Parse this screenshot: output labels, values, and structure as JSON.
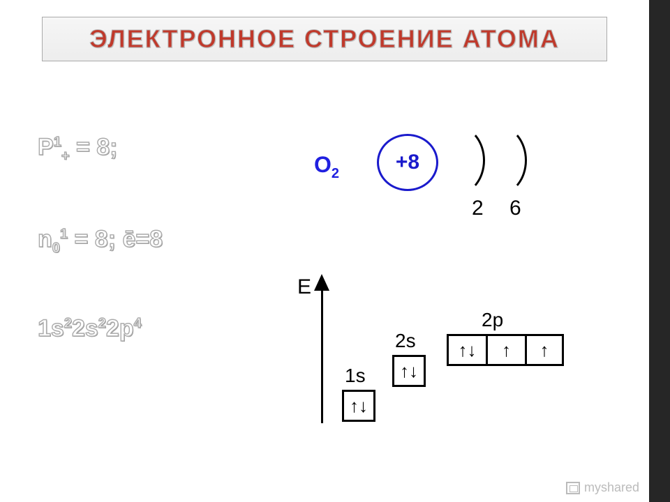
{
  "title": "ЭЛЕКТРОННОЕ СТРОЕНИЕ АТОМА",
  "colors": {
    "title_color": "#c0392b",
    "element_blue": "#2020e0",
    "circle_blue": "#1a1acc",
    "black": "#000000",
    "background": "#ffffff",
    "right_bar": "#262626",
    "outline_gray": "#aaaaaa"
  },
  "formulas": {
    "protons": {
      "base": "P",
      "sup": "1",
      "sub": "+",
      "eq": " = 8;"
    },
    "neutrons": {
      "base": "n",
      "sub": "0",
      "sup": "1",
      "eq": " = 8;",
      "extra": " ē=8"
    },
    "config_parts": [
      "1s",
      "2",
      "2s",
      "2",
      "2p",
      "4"
    ]
  },
  "shell_diagram": {
    "element_label": "O",
    "element_sub": "2",
    "nucleus": "+8",
    "shells": [
      "2",
      "6"
    ]
  },
  "energy_diagram": {
    "axis_label": "E",
    "orbitals": [
      {
        "label": "1s",
        "fill": "↑↓"
      },
      {
        "label": "2s",
        "fill": "↑↓"
      },
      {
        "label": "2p",
        "fills": [
          "↑↓",
          "↑",
          "↑"
        ]
      }
    ]
  },
  "watermark": "myshared"
}
